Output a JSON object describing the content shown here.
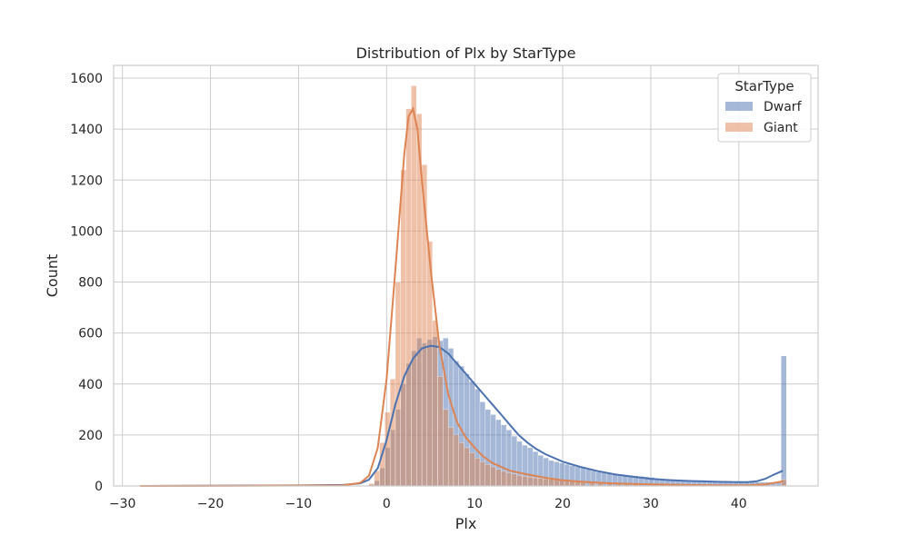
{
  "chart_data": {
    "type": "histogram",
    "title": "Distribution of Plx by StarType",
    "xlabel": "Plx",
    "ylabel": "Count",
    "xlim": [
      -31,
      49
    ],
    "ylim": [
      0,
      1650
    ],
    "xticks": [
      -30,
      -20,
      -10,
      0,
      10,
      20,
      30,
      40
    ],
    "yticks": [
      0,
      200,
      400,
      600,
      800,
      1000,
      1200,
      1400,
      1600
    ],
    "grid": true,
    "legend": {
      "title": "StarType",
      "position": "top-right"
    },
    "bin_width": 0.6,
    "series": [
      {
        "name": "Dwarf",
        "color": "#4c72b0",
        "bar_opacity": 0.5,
        "hist": [
          [
            -2.0,
            5
          ],
          [
            -1.4,
            20
          ],
          [
            -0.8,
            70
          ],
          [
            -0.2,
            150
          ],
          [
            0.4,
            220
          ],
          [
            1.0,
            300
          ],
          [
            1.6,
            400
          ],
          [
            2.2,
            480
          ],
          [
            2.8,
            530
          ],
          [
            3.4,
            580
          ],
          [
            4.0,
            560
          ],
          [
            4.6,
            575
          ],
          [
            5.2,
            585
          ],
          [
            5.8,
            570
          ],
          [
            6.4,
            580
          ],
          [
            7.0,
            540
          ],
          [
            7.6,
            490
          ],
          [
            8.2,
            470
          ],
          [
            8.8,
            440
          ],
          [
            9.4,
            410
          ],
          [
            10.0,
            380
          ],
          [
            10.6,
            330
          ],
          [
            11.2,
            300
          ],
          [
            11.8,
            280
          ],
          [
            12.4,
            260
          ],
          [
            13.0,
            240
          ],
          [
            13.6,
            220
          ],
          [
            14.2,
            195
          ],
          [
            14.8,
            175
          ],
          [
            15.4,
            160
          ],
          [
            16.0,
            150
          ],
          [
            16.6,
            135
          ],
          [
            17.2,
            120
          ],
          [
            17.8,
            110
          ],
          [
            18.4,
            100
          ],
          [
            19.0,
            95
          ],
          [
            19.6,
            90
          ],
          [
            20.2,
            85
          ],
          [
            20.8,
            80
          ],
          [
            21.4,
            75
          ],
          [
            22.0,
            70
          ],
          [
            22.6,
            65
          ],
          [
            23.2,
            60
          ],
          [
            23.8,
            55
          ],
          [
            24.4,
            52
          ],
          [
            25.0,
            50
          ],
          [
            25.6,
            48
          ],
          [
            26.2,
            46
          ],
          [
            26.8,
            44
          ],
          [
            27.4,
            42
          ],
          [
            28.0,
            40
          ],
          [
            28.6,
            38
          ],
          [
            29.2,
            36
          ],
          [
            29.8,
            34
          ],
          [
            30.4,
            30
          ],
          [
            31.0,
            28
          ],
          [
            31.6,
            27
          ],
          [
            32.2,
            26
          ],
          [
            32.8,
            25
          ],
          [
            33.4,
            24
          ],
          [
            34.0,
            23
          ],
          [
            34.6,
            22
          ],
          [
            35.2,
            21
          ],
          [
            35.8,
            20
          ],
          [
            36.4,
            19
          ],
          [
            37.0,
            19
          ],
          [
            37.6,
            18
          ],
          [
            38.2,
            18
          ],
          [
            38.8,
            17
          ],
          [
            39.4,
            17
          ],
          [
            40.0,
            16
          ],
          [
            40.6,
            16
          ],
          [
            41.2,
            15
          ],
          [
            41.8,
            15
          ],
          [
            42.4,
            15
          ],
          [
            43.0,
            15
          ],
          [
            43.6,
            15
          ],
          [
            44.2,
            15
          ],
          [
            44.8,
            510
          ]
        ],
        "kde": [
          [
            -28,
            0
          ],
          [
            -10,
            2
          ],
          [
            -5,
            4
          ],
          [
            -3,
            10
          ],
          [
            -2,
            25
          ],
          [
            -1,
            70
          ],
          [
            0,
            180
          ],
          [
            1,
            320
          ],
          [
            2,
            430
          ],
          [
            3,
            500
          ],
          [
            4,
            540
          ],
          [
            5,
            550
          ],
          [
            6,
            545
          ],
          [
            7,
            520
          ],
          [
            8,
            480
          ],
          [
            9,
            440
          ],
          [
            10,
            400
          ],
          [
            11,
            360
          ],
          [
            12,
            320
          ],
          [
            13,
            280
          ],
          [
            14,
            240
          ],
          [
            15,
            200
          ],
          [
            16,
            170
          ],
          [
            17,
            145
          ],
          [
            18,
            125
          ],
          [
            20,
            95
          ],
          [
            22,
            75
          ],
          [
            24,
            58
          ],
          [
            26,
            45
          ],
          [
            28,
            36
          ],
          [
            30,
            28
          ],
          [
            32,
            23
          ],
          [
            34,
            20
          ],
          [
            36,
            18
          ],
          [
            38,
            16
          ],
          [
            40,
            15
          ],
          [
            41,
            15
          ],
          [
            42,
            18
          ],
          [
            43,
            28
          ],
          [
            44,
            45
          ],
          [
            45,
            60
          ]
        ]
      },
      {
        "name": "Giant",
        "color": "#dd8452",
        "bar_opacity": 0.5,
        "hist": [
          [
            -2.0,
            10
          ],
          [
            -1.4,
            60
          ],
          [
            -0.8,
            170
          ],
          [
            -0.2,
            290
          ],
          [
            0.4,
            420
          ],
          [
            1.0,
            800
          ],
          [
            1.6,
            1240
          ],
          [
            2.2,
            1480
          ],
          [
            2.8,
            1570
          ],
          [
            3.4,
            1460
          ],
          [
            4.0,
            1260
          ],
          [
            4.6,
            960
          ],
          [
            5.2,
            650
          ],
          [
            5.8,
            430
          ],
          [
            6.4,
            300
          ],
          [
            7.0,
            230
          ],
          [
            7.6,
            200
          ],
          [
            8.2,
            170
          ],
          [
            8.8,
            150
          ],
          [
            9.4,
            130
          ],
          [
            10.0,
            110
          ],
          [
            10.6,
            95
          ],
          [
            11.2,
            85
          ],
          [
            11.8,
            75
          ],
          [
            12.4,
            65
          ],
          [
            13.0,
            58
          ],
          [
            13.6,
            52
          ],
          [
            14.2,
            47
          ],
          [
            14.8,
            42
          ],
          [
            15.4,
            38
          ],
          [
            16.0,
            35
          ],
          [
            16.6,
            32
          ],
          [
            17.2,
            30
          ],
          [
            17.8,
            28
          ],
          [
            18.4,
            26
          ],
          [
            19.0,
            24
          ],
          [
            19.6,
            22
          ],
          [
            20.2,
            20
          ],
          [
            20.8,
            18
          ],
          [
            21.4,
            16
          ],
          [
            22.0,
            15
          ],
          [
            23.0,
            13
          ],
          [
            24.0,
            11
          ],
          [
            25.0,
            9
          ],
          [
            26.0,
            8
          ],
          [
            27.0,
            7
          ],
          [
            28.0,
            6
          ],
          [
            30.0,
            5
          ],
          [
            32.0,
            4
          ],
          [
            34.0,
            3
          ],
          [
            36.0,
            3
          ],
          [
            38.0,
            2
          ],
          [
            40.0,
            2
          ],
          [
            42.0,
            2
          ],
          [
            44.8,
            25
          ]
        ],
        "kde": [
          [
            -28,
            0
          ],
          [
            -5,
            2
          ],
          [
            -3,
            12
          ],
          [
            -2,
            40
          ],
          [
            -1,
            150
          ],
          [
            0,
            420
          ],
          [
            1,
            850
          ],
          [
            2,
            1300
          ],
          [
            2.5,
            1450
          ],
          [
            3,
            1480
          ],
          [
            3.5,
            1400
          ],
          [
            4,
            1200
          ],
          [
            5,
            850
          ],
          [
            6,
            550
          ],
          [
            7,
            360
          ],
          [
            8,
            250
          ],
          [
            9,
            190
          ],
          [
            10,
            150
          ],
          [
            11,
            115
          ],
          [
            12,
            90
          ],
          [
            14,
            60
          ],
          [
            16,
            45
          ],
          [
            18,
            32
          ],
          [
            20,
            22
          ],
          [
            22,
            17
          ],
          [
            24,
            13
          ],
          [
            26,
            10
          ],
          [
            28,
            8
          ],
          [
            30,
            6
          ],
          [
            34,
            4
          ],
          [
            38,
            3
          ],
          [
            41,
            3
          ],
          [
            43,
            6
          ],
          [
            44,
            12
          ],
          [
            45,
            18
          ]
        ]
      }
    ]
  }
}
